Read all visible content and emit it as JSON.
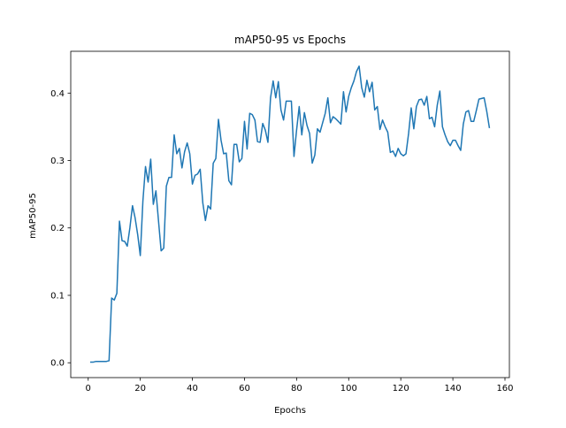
{
  "chart_data": {
    "type": "line",
    "title": "mAP50-95 vs Epochs",
    "xlabel": "Epochs",
    "ylabel": "mAP50-95",
    "xlim": [
      -6.7,
      161.7
    ],
    "ylim": [
      -0.022,
      0.462
    ],
    "xticks": [
      0,
      20,
      40,
      60,
      80,
      100,
      120,
      140,
      160
    ],
    "yticks": [
      0.0,
      0.1,
      0.2,
      0.3,
      0.4
    ],
    "xtick_labels": [
      "0",
      "20",
      "40",
      "60",
      "80",
      "100",
      "120",
      "140",
      "160"
    ],
    "ytick_labels": [
      "0.0",
      "0.1",
      "0.2",
      "0.3",
      "0.4"
    ],
    "grid": false,
    "legend": "none",
    "line_color": "#1f77b4",
    "series": [
      {
        "x": [
          1,
          2,
          3,
          4,
          5,
          6,
          7,
          8,
          9,
          10,
          11,
          12,
          13,
          14,
          15,
          16,
          17,
          18,
          19,
          20,
          21,
          22,
          23,
          24,
          25,
          26,
          27,
          28,
          29,
          30,
          31,
          32,
          33,
          34,
          35,
          36,
          37,
          38,
          39,
          40,
          41,
          42,
          43,
          44,
          45,
          46,
          47,
          48,
          49,
          50,
          51,
          52,
          53,
          54,
          55,
          56,
          57,
          58,
          59,
          60,
          61,
          62,
          63,
          64,
          65,
          66,
          67,
          68,
          69,
          70,
          71,
          72,
          73,
          74,
          75,
          76,
          77,
          78,
          79,
          80,
          81,
          82,
          83,
          84,
          85,
          86,
          87,
          88,
          89,
          90,
          91,
          92,
          93,
          94,
          95,
          96,
          97,
          98,
          99,
          100,
          101,
          102,
          103,
          104,
          105,
          106,
          107,
          108,
          109,
          110,
          111,
          112,
          113,
          114,
          115,
          116,
          117,
          118,
          119,
          120,
          121,
          122,
          123,
          124,
          125,
          126,
          127,
          128,
          129,
          130,
          131,
          132,
          133,
          134,
          135,
          136,
          137,
          138,
          139,
          140,
          141,
          142,
          143,
          144,
          145,
          146,
          147,
          148,
          149,
          150,
          151,
          152,
          153,
          154
        ],
        "values": [
          0.001,
          0.001,
          0.002,
          0.002,
          0.002,
          0.002,
          0.002,
          0.003,
          0.096,
          0.093,
          0.103,
          0.21,
          0.181,
          0.18,
          0.173,
          0.2,
          0.233,
          0.215,
          0.19,
          0.159,
          0.24,
          0.291,
          0.268,
          0.302,
          0.235,
          0.255,
          0.21,
          0.166,
          0.17,
          0.262,
          0.275,
          0.275,
          0.338,
          0.31,
          0.318,
          0.289,
          0.313,
          0.326,
          0.31,
          0.265,
          0.278,
          0.28,
          0.287,
          0.237,
          0.211,
          0.233,
          0.228,
          0.296,
          0.303,
          0.361,
          0.33,
          0.31,
          0.311,
          0.27,
          0.264,
          0.324,
          0.324,
          0.298,
          0.303,
          0.358,
          0.317,
          0.37,
          0.368,
          0.36,
          0.328,
          0.327,
          0.355,
          0.345,
          0.327,
          0.393,
          0.418,
          0.393,
          0.417,
          0.375,
          0.36,
          0.388,
          0.388,
          0.388,
          0.306,
          0.345,
          0.38,
          0.338,
          0.371,
          0.352,
          0.34,
          0.296,
          0.308,
          0.347,
          0.342,
          0.356,
          0.37,
          0.393,
          0.356,
          0.365,
          0.362,
          0.358,
          0.354,
          0.402,
          0.372,
          0.395,
          0.408,
          0.418,
          0.432,
          0.44,
          0.408,
          0.394,
          0.419,
          0.402,
          0.416,
          0.375,
          0.38,
          0.346,
          0.36,
          0.35,
          0.342,
          0.312,
          0.314,
          0.306,
          0.318,
          0.31,
          0.307,
          0.31,
          0.34,
          0.378,
          0.347,
          0.38,
          0.39,
          0.391,
          0.382,
          0.395,
          0.362,
          0.364,
          0.35,
          0.382,
          0.403,
          0.35,
          0.338,
          0.328,
          0.322,
          0.33,
          0.33,
          0.322,
          0.315,
          0.354,
          0.372,
          0.374,
          0.358,
          0.358,
          0.374,
          0.391,
          0.392,
          0.393,
          0.373,
          0.349
        ]
      }
    ]
  }
}
